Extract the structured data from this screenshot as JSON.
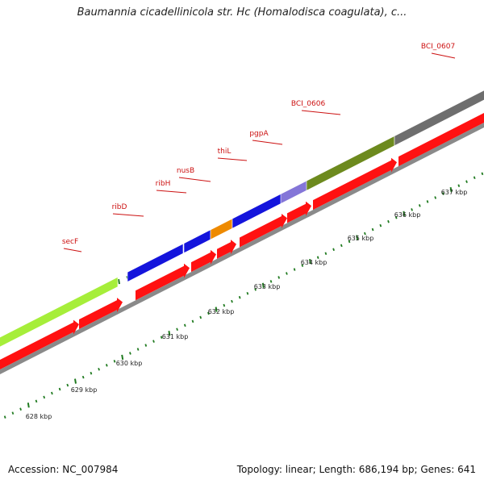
{
  "title": "Baumannia cicadellinicola str. Hc (Homalodisca coagulata), c...",
  "footer": {
    "accession": "Accession: NC_007984",
    "summary": "Topology: linear; Length: 686,194 bp; Genes: 641"
  },
  "colors": {
    "background": "#ffffff",
    "backbone": "#8a8a8a",
    "label_red": "#cc1111",
    "tick_green": "#1f7a1f",
    "cds_red": "#ff1111",
    "gene_blue": "#1414dc",
    "gene_lime": "#a6ee3a",
    "gene_orange": "#ee8a00",
    "gene_violet": "#8476d8",
    "gene_olive": "#6d8a1e",
    "gene_grey": "#6e6e6e"
  },
  "scale_labels": [
    "628 kbp",
    "629 kbp",
    "630 kbp",
    "631 kbp",
    "632 kbp",
    "633 kbp",
    "634 kbp",
    "635 kbp",
    "636 kbp",
    "637 kbp"
  ],
  "genes": [
    {
      "name": "secF",
      "color": "gene_lime"
    },
    {
      "name": "ribD",
      "color": "gene_blue"
    },
    {
      "name": "ribH",
      "color": "gene_blue"
    },
    {
      "name": "nusB",
      "color": "gene_orange"
    },
    {
      "name": "thiL",
      "color": "gene_blue"
    },
    {
      "name": "pgpA",
      "color": "gene_violet"
    },
    {
      "name": "BCI_0606",
      "color": "gene_olive"
    },
    {
      "name": "BCI_0607",
      "color": "gene_grey"
    }
  ]
}
